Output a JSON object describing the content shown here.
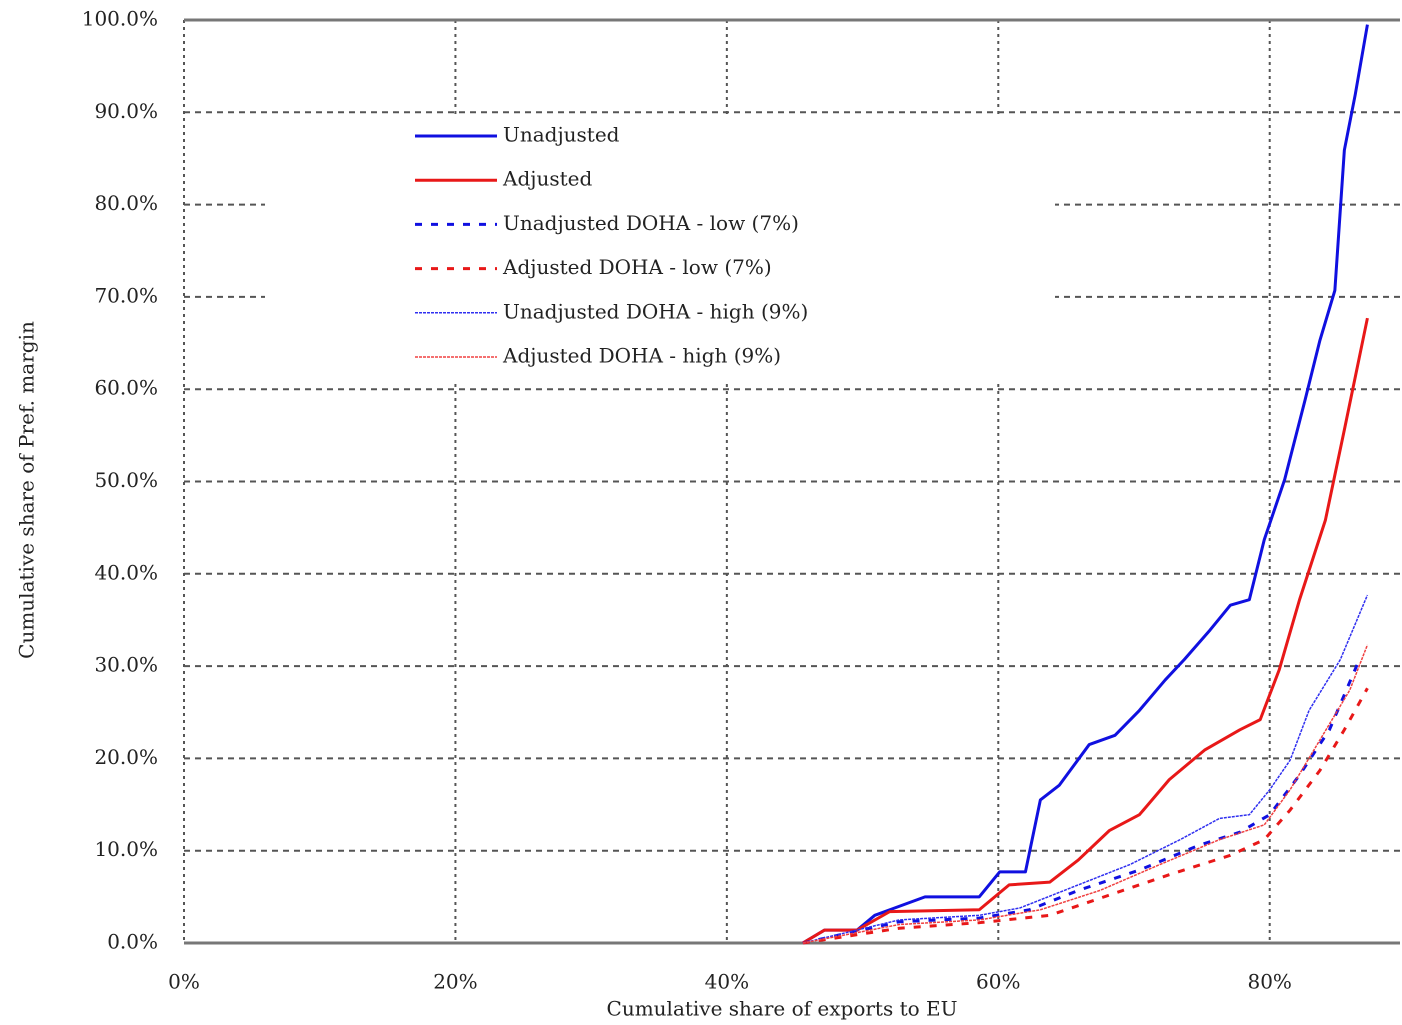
{
  "chart_data": {
    "type": "line",
    "x_label": "Cumulative share of exports to EU",
    "y_label": "Cumulative share of Pref. margin",
    "xlim": [
      0,
      89.6
    ],
    "ylim": [
      0,
      100
    ],
    "xticks": [
      {
        "value": 0,
        "label": "0%"
      },
      {
        "value": 20,
        "label": "20%"
      },
      {
        "value": 40,
        "label": "40%"
      },
      {
        "value": 60,
        "label": "60%"
      },
      {
        "value": 80,
        "label": "80%"
      }
    ],
    "yticks": [
      {
        "value": 0,
        "label": "0.0%"
      },
      {
        "value": 10,
        "label": "10.0%"
      },
      {
        "value": 20,
        "label": "20.0%"
      },
      {
        "value": 30,
        "label": "30.0%"
      },
      {
        "value": 40,
        "label": "40.0%"
      },
      {
        "value": 50,
        "label": "50.0%"
      },
      {
        "value": 60,
        "label": "60.0%"
      },
      {
        "value": 70,
        "label": "70.0%"
      },
      {
        "value": 80,
        "label": "80.0%"
      },
      {
        "value": 90,
        "label": "90.0%"
      },
      {
        "value": 100,
        "label": "100.0%"
      }
    ],
    "grid": true,
    "legend": "top-center",
    "series": [
      {
        "name": "Unadjusted",
        "color": "#1010e0",
        "style": "solid",
        "width": 3,
        "x": [
          45.6,
          47.2,
          49.6,
          50.9,
          54.6,
          58.6,
          60.1,
          62,
          63.1,
          64.5,
          66.7,
          68.6,
          70.4,
          72.3,
          73.7,
          75.6,
          77.1,
          78.5,
          79.6,
          81.1,
          82.6,
          83.7,
          84.8,
          85.5,
          86.3,
          87.2
        ],
        "values": [
          0,
          1.4,
          1.4,
          3.0,
          5.0,
          5.0,
          7.7,
          7.7,
          15.5,
          17.1,
          21.5,
          22.5,
          25.2,
          28.5,
          30.7,
          33.9,
          36.6,
          37.2,
          43.7,
          50.2,
          58.8,
          65.3,
          70.7,
          85.9,
          91.9,
          99.5
        ]
      },
      {
        "name": "Adjusted",
        "color": "#e81818",
        "style": "solid",
        "width": 3,
        "x": [
          45.6,
          47.2,
          49.6,
          52,
          58.6,
          60.8,
          63.8,
          65.9,
          68.2,
          70.4,
          72.6,
          75.2,
          77.8,
          79.3,
          80.7,
          82.2,
          84.1,
          85.5,
          87.2
        ],
        "values": [
          0,
          1.4,
          1.4,
          3.4,
          3.6,
          6.3,
          6.6,
          9.0,
          12.2,
          13.9,
          17.7,
          20.9,
          23.1,
          24.2,
          29.6,
          37.2,
          45.8,
          55.6,
          67.7
        ]
      },
      {
        "name": "Unadjusted DOHA - low (7%)",
        "color": "#1010e0",
        "style": "dashed",
        "width": 3,
        "x": [
          45.6,
          52.7,
          58.6,
          62.3,
          65.9,
          70.4,
          74.8,
          77.8,
          80,
          82.2,
          84.4,
          86.6
        ],
        "values": [
          0,
          2.3,
          2.7,
          3.6,
          5.7,
          7.9,
          10.6,
          12.0,
          13.9,
          18.2,
          23.1,
          30.7
        ]
      },
      {
        "name": "Adjusted DOHA - low (7%)",
        "color": "#e81818",
        "style": "dashed",
        "width": 3,
        "x": [
          45.6,
          52.7,
          58.6,
          63.8,
          68.2,
          72.6,
          77.1,
          79.6,
          81.5,
          83.7,
          85.5,
          87.2
        ],
        "values": [
          0,
          1.6,
          2.2,
          3.0,
          5.2,
          7.4,
          9.5,
          11.2,
          14.4,
          18.7,
          23.1,
          27.6
        ]
      },
      {
        "name": "Unadjusted DOHA - high (9%)",
        "color": "#3030f0",
        "style": "dotted",
        "width": 1.5,
        "x": [
          45.6,
          52.7,
          58.6,
          61.6,
          65.9,
          69.7,
          73.4,
          76.3,
          78.5,
          80,
          81.5,
          82.9,
          85.2,
          87.2
        ],
        "values": [
          0,
          2.5,
          3.0,
          3.8,
          6.3,
          8.5,
          11.2,
          13.5,
          13.9,
          16.6,
          19.8,
          25.2,
          30.7,
          37.7
        ]
      },
      {
        "name": "Adjusted DOHA - high (9%)",
        "color": "#f04040",
        "style": "dotted",
        "width": 1.5,
        "x": [
          45.6,
          52.7,
          58.6,
          63.1,
          67.5,
          71.9,
          76.3,
          79.6,
          81.5,
          83.7,
          85.9,
          87.2
        ],
        "values": [
          0,
          2.0,
          2.5,
          3.6,
          5.7,
          8.5,
          11.2,
          12.8,
          16.6,
          22.0,
          27.4,
          32.3
        ]
      }
    ]
  }
}
